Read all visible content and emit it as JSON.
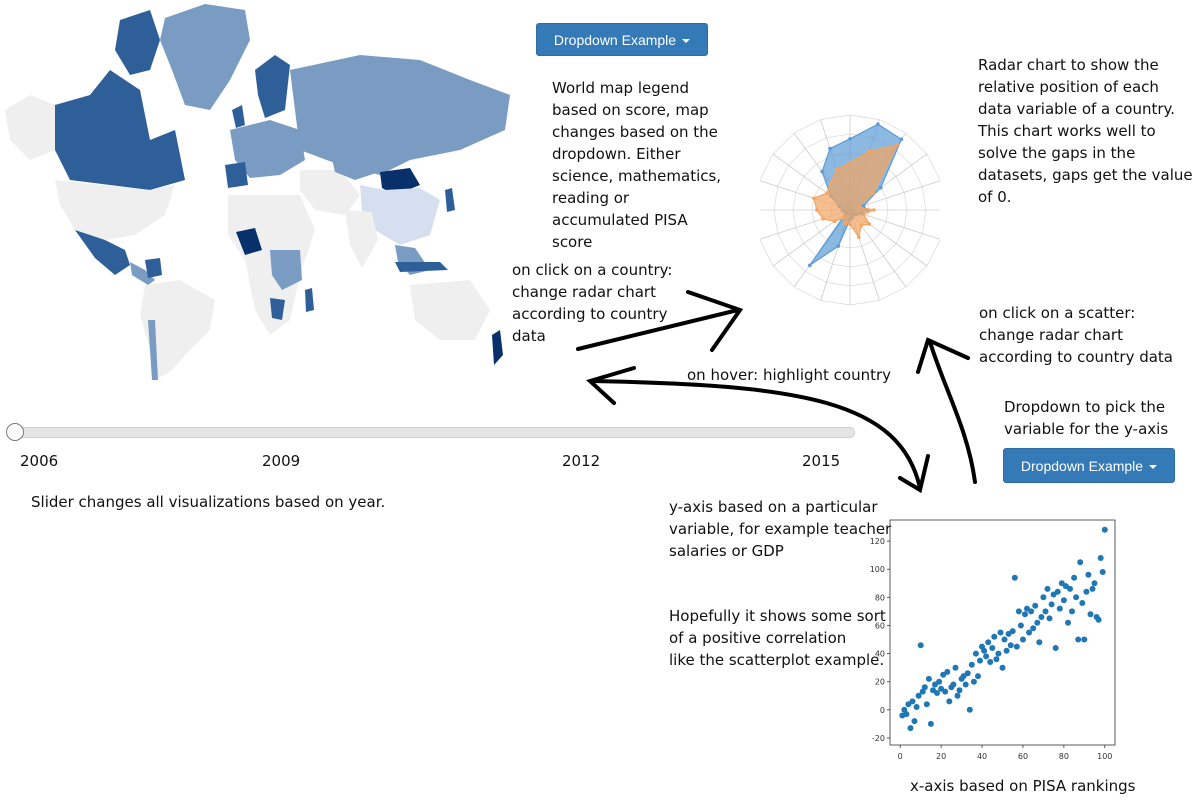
{
  "dropdowns": {
    "map_dropdown_label": "Dropdown Example",
    "yaxis_dropdown_label": "Dropdown Example"
  },
  "annotations": {
    "map_legend": "World map legend\nbased on score, map\nchanges based on the\ndropdown. Either\nscience, mathematics,\nreading or\naccumulated PISA\nscore",
    "radar_description": "Radar chart to show the\nrelative position of each\ndata variable of a country.\nThis chart works well to\nsolve the gaps in the\ndatasets, gaps get the value\nof 0.",
    "click_country": "on click on a country:\nchange radar chart\naccording to country\ndata",
    "click_scatter": "on click on a scatter:\nchange radar chart\naccording to country data",
    "hover": "on hover: highlight country",
    "dropdown_yaxis": "Dropdown to pick the\nvariable for the y-axis",
    "slider": "Slider changes all visualizations based on year.",
    "yaxis_note": "y-axis based on a particular\nvariable, for example teacher\nsalaries or GDP",
    "correlation_note": "Hopefully it shows some sort\nof a positive correlation\nlike the scatterplot example.",
    "xaxis_note": "x-axis based on PISA rankings"
  },
  "slider": {
    "years": [
      "2006",
      "2009",
      "2012",
      "2015"
    ],
    "value": "2006"
  },
  "colors": {
    "button": "#337ab7",
    "map_dark": "#08306b",
    "map_mid": "#2f5f98",
    "map_light": "#7a9cc2",
    "map_empty": "#efefef",
    "radar_blue": "#5b9bd5",
    "radar_orange": "#f4a460",
    "scatter_point": "#1f77b4"
  },
  "chart_data": {
    "type": "scatter",
    "xlim": [
      -5,
      105
    ],
    "ylim": [
      -25,
      135
    ],
    "xticks": [
      0,
      20,
      40,
      60,
      80,
      100
    ],
    "yticks": [
      -20,
      0,
      20,
      40,
      60,
      80,
      100,
      120
    ],
    "points": [
      [
        1,
        -4
      ],
      [
        2,
        0
      ],
      [
        3,
        -3
      ],
      [
        4,
        4
      ],
      [
        5,
        -13
      ],
      [
        6,
        6
      ],
      [
        7,
        -8
      ],
      [
        8,
        2
      ],
      [
        9,
        10
      ],
      [
        10,
        46
      ],
      [
        11,
        13
      ],
      [
        12,
        16
      ],
      [
        13,
        4
      ],
      [
        14,
        22
      ],
      [
        15,
        -10
      ],
      [
        16,
        14
      ],
      [
        17,
        18
      ],
      [
        18,
        12
      ],
      [
        19,
        20
      ],
      [
        20,
        15
      ],
      [
        21,
        25
      ],
      [
        22,
        13
      ],
      [
        23,
        27
      ],
      [
        24,
        6
      ],
      [
        25,
        16
      ],
      [
        26,
        18
      ],
      [
        27,
        30
      ],
      [
        28,
        10
      ],
      [
        29,
        14
      ],
      [
        30,
        22
      ],
      [
        31,
        24
      ],
      [
        32,
        18
      ],
      [
        33,
        26
      ],
      [
        34,
        0
      ],
      [
        35,
        32
      ],
      [
        36,
        20
      ],
      [
        37,
        40
      ],
      [
        38,
        24
      ],
      [
        39,
        35
      ],
      [
        40,
        45
      ],
      [
        41,
        42
      ],
      [
        42,
        38
      ],
      [
        43,
        48
      ],
      [
        44,
        34
      ],
      [
        45,
        44
      ],
      [
        46,
        52
      ],
      [
        47,
        36
      ],
      [
        48,
        40
      ],
      [
        49,
        55
      ],
      [
        50,
        30
      ],
      [
        51,
        50
      ],
      [
        52,
        42
      ],
      [
        53,
        54
      ],
      [
        54,
        46
      ],
      [
        55,
        56
      ],
      [
        56,
        94
      ],
      [
        57,
        45
      ],
      [
        58,
        70
      ],
      [
        59,
        60
      ],
      [
        60,
        50
      ],
      [
        61,
        68
      ],
      [
        62,
        72
      ],
      [
        63,
        55
      ],
      [
        64,
        70
      ],
      [
        65,
        58
      ],
      [
        66,
        74
      ],
      [
        67,
        62
      ],
      [
        68,
        48
      ],
      [
        69,
        66
      ],
      [
        70,
        80
      ],
      [
        71,
        70
      ],
      [
        72,
        86
      ],
      [
        73,
        65
      ],
      [
        74,
        75
      ],
      [
        75,
        82
      ],
      [
        76,
        44
      ],
      [
        77,
        84
      ],
      [
        78,
        72
      ],
      [
        79,
        90
      ],
      [
        80,
        78
      ],
      [
        81,
        88
      ],
      [
        82,
        62
      ],
      [
        83,
        86
      ],
      [
        84,
        70
      ],
      [
        85,
        94
      ],
      [
        86,
        80
      ],
      [
        87,
        50
      ],
      [
        88,
        105
      ],
      [
        89,
        76
      ],
      [
        90,
        50
      ],
      [
        91,
        84
      ],
      [
        92,
        96
      ],
      [
        93,
        68
      ],
      [
        94,
        86
      ],
      [
        95,
        90
      ],
      [
        96,
        66
      ],
      [
        97,
        64
      ],
      [
        98,
        108
      ],
      [
        99,
        98
      ],
      [
        100,
        128
      ]
    ]
  },
  "radar_data": {
    "axes": 20,
    "series": [
      {
        "color": "#5b9bd5",
        "values": [
          0.75,
          0.95,
          0.92,
          0.4,
          0.15,
          0.18,
          0.12,
          0.08,
          0.05,
          0.08,
          0.1,
          0.4,
          0.72,
          0.05,
          0.06,
          0.08,
          0.12,
          0.25,
          0.5,
          0.68
        ]
      },
      {
        "color": "#f4a460",
        "values": [
          0.5,
          0.65,
          0.85,
          0.3,
          0.1,
          0.25,
          0.15,
          0.25,
          0.2,
          0.3,
          0.15,
          0.15,
          0.1,
          0.2,
          0.3,
          0.35,
          0.4,
          0.3,
          0.35,
          0.45
        ]
      }
    ]
  }
}
